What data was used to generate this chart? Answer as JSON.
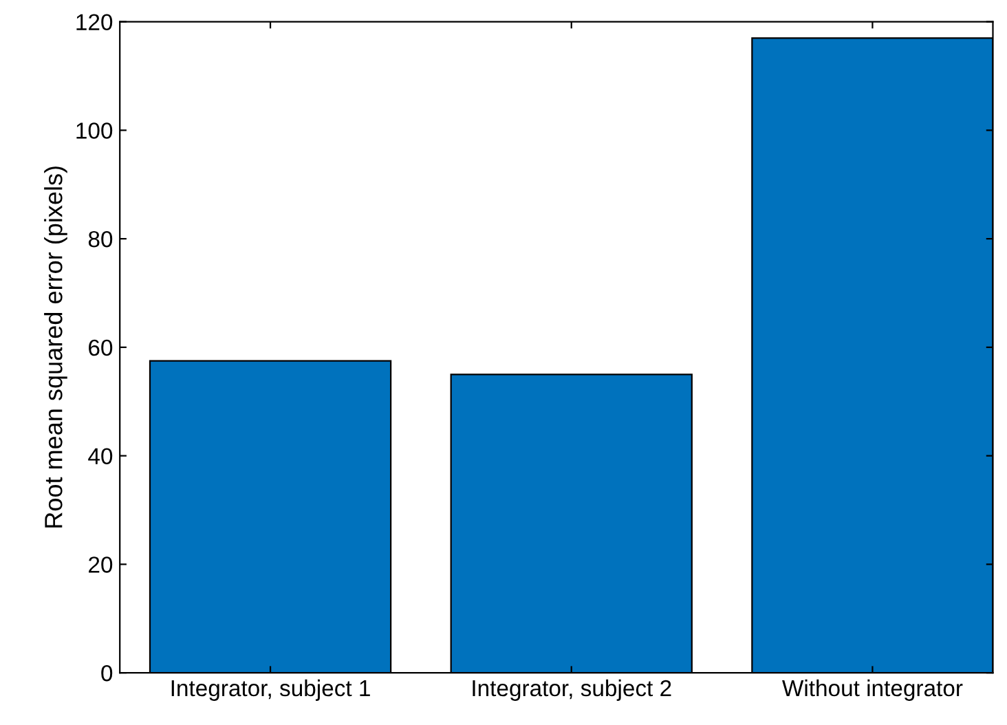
{
  "chart_data": {
    "type": "bar",
    "ylabel": "Root mean squared error (pixels)",
    "categories": [
      "Integrator, subject 1",
      "Integrator, subject 2",
      "Without integrator"
    ],
    "values": [
      57.5,
      55,
      117
    ],
    "color": "#0072bd",
    "ylim": [
      0,
      120
    ],
    "yticks": [
      0,
      20,
      40,
      60,
      80,
      100,
      120
    ],
    "grid": false
  }
}
